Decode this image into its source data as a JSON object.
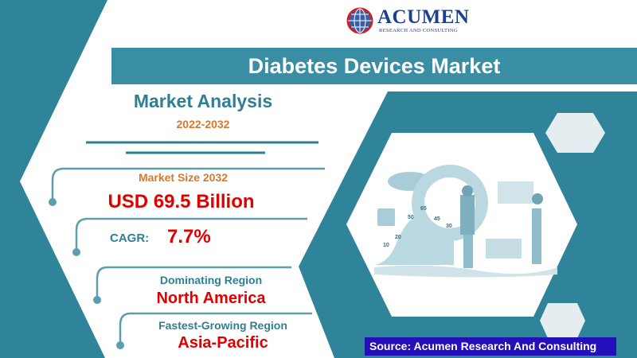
{
  "colors": {
    "teal": "#2f8499",
    "accent_orange": "#d9782a",
    "value_red": "#e00000",
    "source_bg": "#2410b8",
    "logo_blue": "#1d3f8f"
  },
  "logo": {
    "name": "ACUMEN",
    "tagline": "RESEARCH AND CONSULTING"
  },
  "title": "Diabetes Devices Market",
  "analysis": {
    "heading": "Market Analysis",
    "period": "2022-2032"
  },
  "market_size": {
    "label": "Market Size 2032",
    "value": "USD 69.5 Billion"
  },
  "cagr": {
    "label": "CAGR:",
    "value": "7.7%"
  },
  "dominating_region": {
    "label": "Dominating Region",
    "value": "North America"
  },
  "fastest_region": {
    "label": "Fastest-Growing Region",
    "value": "Asia-Pacific"
  },
  "illustration": {
    "icon": "data-analytics-illustration",
    "labels": [
      "65",
      "50",
      "45",
      "30",
      "20",
      "10"
    ]
  },
  "source": "Source: Acumen Research And Consulting"
}
